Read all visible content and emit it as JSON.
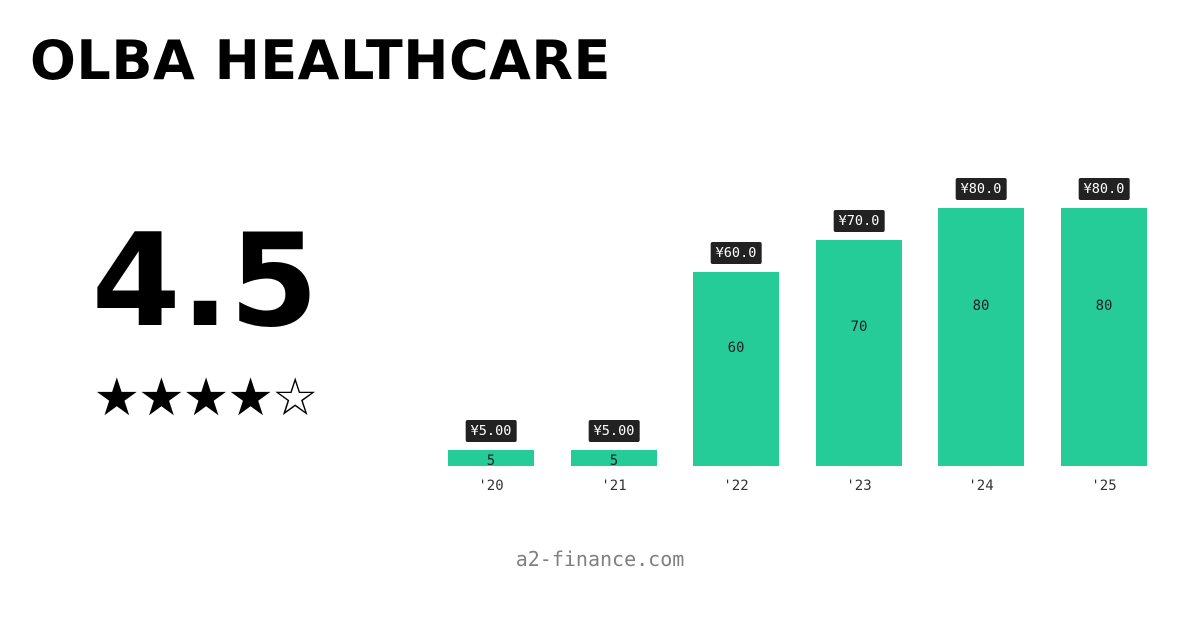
{
  "header": {
    "title": "OLBA HEALTHCARE"
  },
  "rating": {
    "value": "4.5",
    "stars": "★★★★☆",
    "filled": 4,
    "empty": 1
  },
  "footer": {
    "site": "a2-finance.com"
  },
  "colors": {
    "bar": "#26cc97",
    "tag_bg": "#222222",
    "tag_text": "#ffffff",
    "footer_text": "#808080"
  },
  "chart_data": {
    "type": "bar",
    "title": "",
    "categories": [
      "'20",
      "'21",
      "'22",
      "'23",
      "'24",
      "'25"
    ],
    "values": [
      5,
      5,
      60,
      70,
      80,
      80
    ],
    "value_labels": [
      "5",
      "5",
      "60",
      "70",
      "80",
      "80"
    ],
    "annotations": [
      "¥5.00",
      "¥5.00",
      "¥60.0",
      "¥70.0",
      "¥80.0",
      "¥80.0"
    ],
    "xlabel": "",
    "ylabel": "",
    "ylim": [
      0,
      80
    ],
    "grid": false,
    "legend": null
  }
}
